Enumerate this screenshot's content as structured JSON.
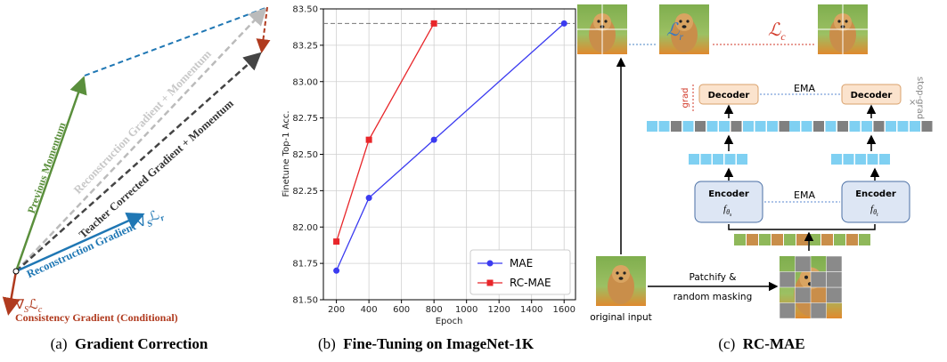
{
  "panel_a": {
    "previous_momentum": "Previous Momentum",
    "reconstruction_momentum": "Reconstruction Gradient + Momentum",
    "teacher_corrected": "Teacher Corrected Gradient + Momentum",
    "reconstruction_gradient": {
      "text": "Reconstruction Gradient",
      "nabla": "∇",
      "sub": "S",
      "loss": "ℒ",
      "loss_sub": "r"
    },
    "consistency_symbol": {
      "nabla": "∇",
      "sub": "S",
      "loss": "ℒ",
      "loss_sub": "c"
    },
    "consistency_gradient": "Consistency Gradient (Conditional)"
  },
  "chart_data": {
    "type": "line",
    "xlabel": "Epoch",
    "ylabel": "Finetune Top-1 Acc.",
    "xlim": [
      120,
      1670
    ],
    "ylim": [
      81.5,
      83.5
    ],
    "xticks": [
      200,
      400,
      600,
      800,
      1000,
      1200,
      1400,
      1600
    ],
    "yticks": [
      {
        "value": 81.5,
        "label": "81.50"
      },
      81.75,
      {
        "value": 82.0,
        "label": "82.00"
      },
      82.25,
      {
        "value": 82.5,
        "label": "82.50"
      },
      82.75,
      {
        "value": 83.0,
        "label": "83.00"
      },
      83.25,
      {
        "value": 83.5,
        "label": "83.50"
      }
    ],
    "grid": true,
    "reference_line": 83.4,
    "legend": "lower right",
    "series": [
      {
        "name": "MAE",
        "color": "#3b3bf0",
        "marker": "circle",
        "x": [
          200,
          400,
          800,
          1600
        ],
        "values": [
          81.7,
          82.2,
          82.6,
          83.4
        ]
      },
      {
        "name": "RC-MAE",
        "color": "#e8262a",
        "marker": "square",
        "x": [
          200,
          400,
          800
        ],
        "values": [
          81.9,
          82.6,
          83.4
        ]
      }
    ]
  },
  "panel_c": {
    "loss_r": {
      "loss": "ℒ",
      "sub": "r"
    },
    "loss_c": {
      "loss": "ℒ",
      "sub": "c"
    },
    "decoder_student": "Decoder",
    "decoder_teacher": "Decoder",
    "ema_top": "EMA",
    "ema_bottom": "EMA",
    "grad": "grad",
    "stop_grad": "stop-grad",
    "encoder_student": {
      "title": "Encoder",
      "f": "f",
      "sub": "θ",
      "subsub": "s"
    },
    "encoder_teacher": {
      "title": "Encoder",
      "f": "f",
      "sub": "θ",
      "subsub": "t"
    },
    "patchify": [
      "Patchify &",
      "random masking"
    ],
    "original_input": "original input"
  },
  "captions": [
    {
      "label": "(a)",
      "title": "Gradient Correction"
    },
    {
      "label": "(b)",
      "title": "Fine-Tuning on ImageNet-1K"
    },
    {
      "label": "(c)",
      "title": "RC-MAE"
    }
  ]
}
